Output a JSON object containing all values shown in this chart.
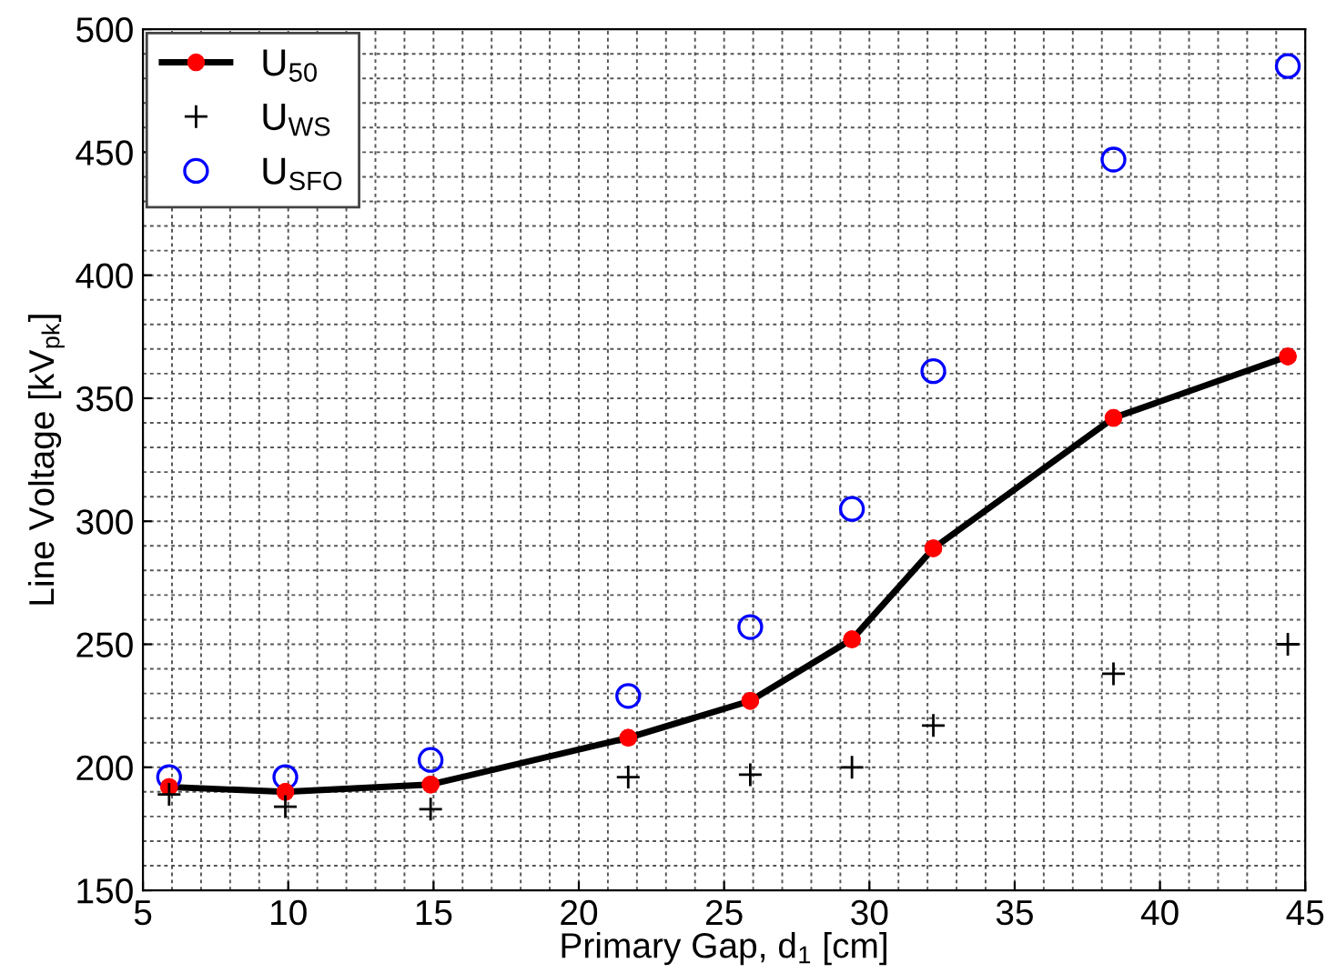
{
  "chart_data": {
    "type": "line",
    "xlabel": "Primary Gap, d$_{1}$ [cm]",
    "ylabel": "Line Voltage [kV$_{pk}$]",
    "x": [
      5.9,
      9.9,
      14.9,
      21.7,
      25.9,
      29.4,
      32.2,
      38.4,
      44.4
    ],
    "series": [
      {
        "name": "U$_{50}$",
        "color": "#000000",
        "colors": [
          "#ff0000",
          "#ff0000",
          "#ff0000",
          "#ff0000",
          "#ff0000",
          "#ff0000",
          "#ff0000",
          "#ff0000",
          "#ff0000"
        ],
        "marker": "circle",
        "values": [
          192,
          190,
          193,
          212,
          227,
          252,
          289,
          342,
          367
        ]
      },
      {
        "name": "U$_{WS}$",
        "type": "scatter",
        "color": "#000000",
        "marker": "cross",
        "values": [
          189,
          184,
          183,
          196,
          197,
          200,
          217,
          238,
          250
        ]
      },
      {
        "name": "U$_{SFO}$",
        "type": "scatter",
        "color": "#0000ff",
        "marker": "circle",
        "values": [
          196,
          196,
          203,
          229,
          257,
          305,
          361,
          447,
          485
        ]
      }
    ],
    "xlim": [
      5,
      45
    ],
    "ylim": [
      150,
      500
    ],
    "xticks": [
      5,
      10,
      15,
      20,
      25,
      30,
      35,
      40,
      45
    ],
    "yticks": [
      150,
      200,
      250,
      300,
      350,
      400,
      450,
      500
    ],
    "grid": true,
    "legend": "top left"
  }
}
